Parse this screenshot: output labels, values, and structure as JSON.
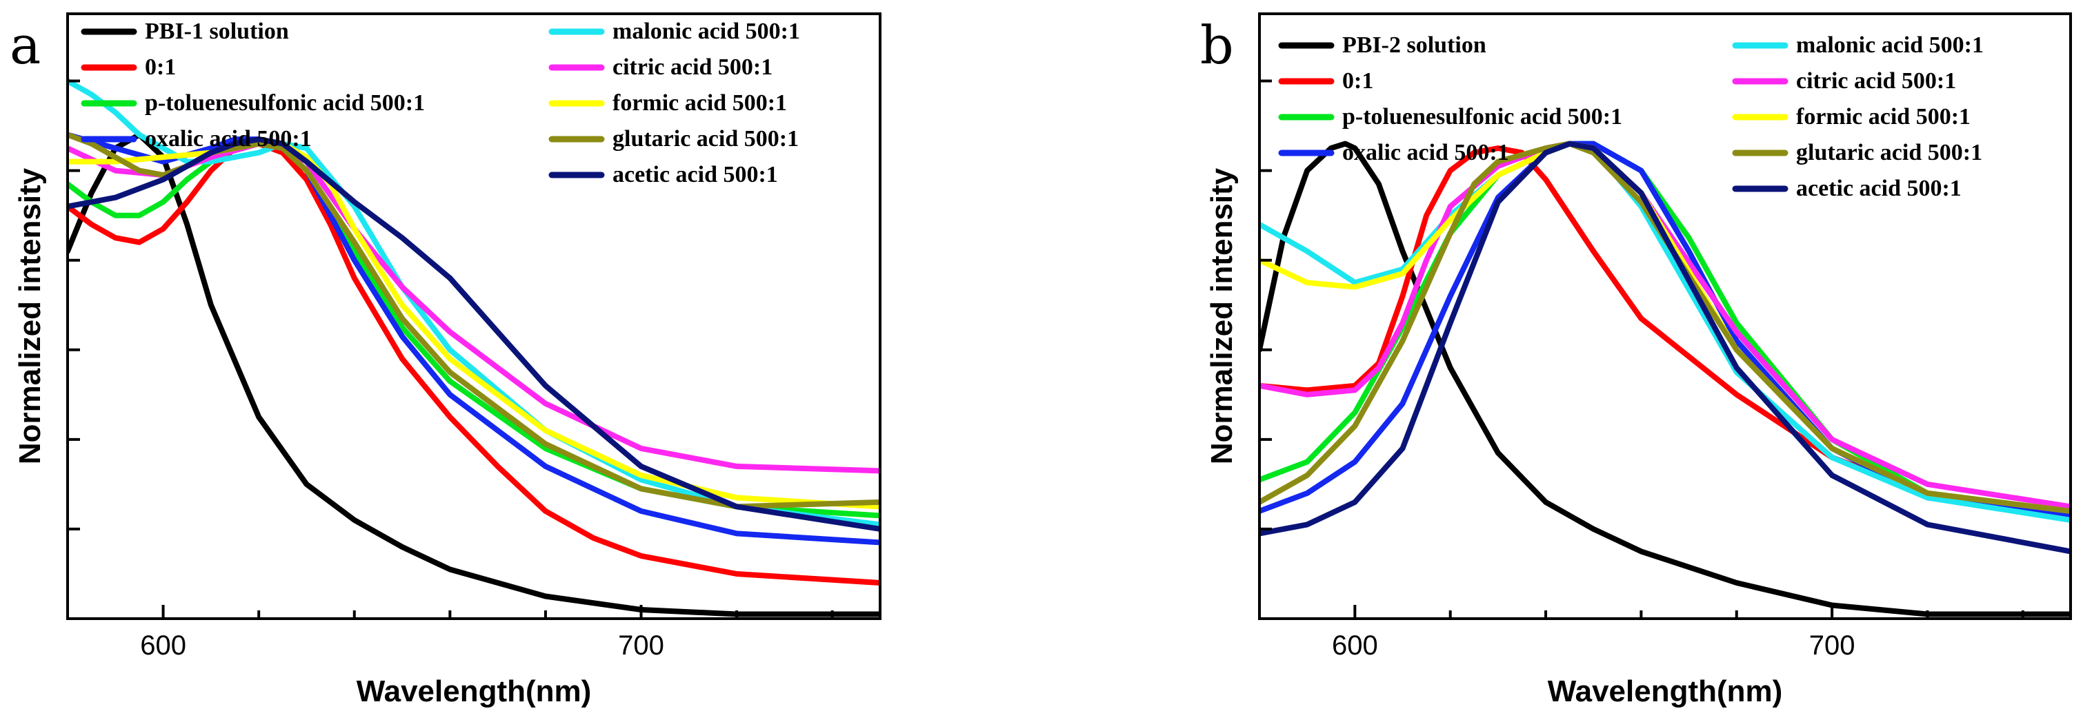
{
  "chart_data": [
    {
      "type": "line",
      "panel_label": "a",
      "xlabel": "Wavelength(nm)",
      "ylabel": "Normalized intensity",
      "xlim": [
        580,
        750
      ],
      "ylim": [
        0,
        1.35
      ],
      "x_ticks": [
        600,
        700
      ],
      "x_tick_labels": [
        "600",
        "700"
      ],
      "legend_position": "top",
      "series": [
        {
          "name": "PBI-1 solution",
          "color": "#000000",
          "x": [
            580,
            585,
            590,
            595,
            600,
            605,
            610,
            620,
            630,
            640,
            650,
            660,
            680,
            700,
            720,
            750
          ],
          "values": [
            0.82,
            0.95,
            1.05,
            1.08,
            1.03,
            0.88,
            0.7,
            0.45,
            0.3,
            0.22,
            0.16,
            0.11,
            0.05,
            0.02,
            0.01,
            0.01
          ]
        },
        {
          "name": "0:1",
          "color": "#ff0000",
          "x": [
            580,
            585,
            590,
            595,
            600,
            605,
            610,
            615,
            620,
            625,
            630,
            635,
            640,
            650,
            660,
            670,
            680,
            690,
            700,
            720,
            750
          ],
          "values": [
            0.92,
            0.88,
            0.85,
            0.84,
            0.87,
            0.93,
            1.0,
            1.05,
            1.06,
            1.04,
            0.98,
            0.88,
            0.76,
            0.58,
            0.45,
            0.34,
            0.24,
            0.18,
            0.14,
            0.1,
            0.08
          ]
        },
        {
          "name": "p-toluenesulfonic acid 500:1",
          "color": "#00e61e",
          "x": [
            580,
            585,
            590,
            595,
            600,
            605,
            610,
            615,
            620,
            625,
            630,
            640,
            650,
            660,
            680,
            700,
            720,
            750
          ],
          "values": [
            0.97,
            0.93,
            0.9,
            0.9,
            0.93,
            0.98,
            1.02,
            1.05,
            1.06,
            1.05,
            1.0,
            0.82,
            0.65,
            0.53,
            0.38,
            0.29,
            0.25,
            0.23
          ]
        },
        {
          "name": "oxalic acid 500:1",
          "color": "#1428f0",
          "x": [
            580,
            590,
            600,
            610,
            615,
            620,
            625,
            630,
            640,
            650,
            660,
            680,
            700,
            720,
            750
          ],
          "values": [
            1.08,
            1.05,
            1.02,
            1.05,
            1.07,
            1.07,
            1.05,
            1.0,
            0.8,
            0.63,
            0.5,
            0.34,
            0.24,
            0.19,
            0.17
          ]
        },
        {
          "name": "malonic acid 500:1",
          "color": "#1ee6f0",
          "x": [
            580,
            585,
            590,
            595,
            600,
            605,
            610,
            620,
            625,
            630,
            640,
            650,
            660,
            680,
            700,
            720,
            750
          ],
          "values": [
            1.2,
            1.17,
            1.13,
            1.08,
            1.05,
            1.02,
            1.02,
            1.04,
            1.06,
            1.05,
            0.92,
            0.74,
            0.6,
            0.42,
            0.31,
            0.25,
            0.21
          ]
        },
        {
          "name": "citric acid 500:1",
          "color": "#ff28f0",
          "x": [
            580,
            590,
            600,
            610,
            620,
            625,
            630,
            640,
            650,
            660,
            680,
            700,
            720,
            750
          ],
          "values": [
            1.05,
            1.0,
            0.99,
            1.03,
            1.06,
            1.05,
            1.02,
            0.87,
            0.74,
            0.64,
            0.48,
            0.38,
            0.34,
            0.33
          ]
        },
        {
          "name": "formic acid 500:1",
          "color": "#ffff00",
          "x": [
            580,
            590,
            600,
            610,
            620,
            625,
            630,
            635,
            640,
            650,
            660,
            680,
            700,
            720,
            750
          ],
          "values": [
            1.02,
            1.02,
            1.03,
            1.04,
            1.06,
            1.06,
            1.03,
            0.97,
            0.87,
            0.7,
            0.58,
            0.42,
            0.32,
            0.27,
            0.25
          ]
        },
        {
          "name": "glutaric acid 500:1",
          "color": "#8c8c14",
          "x": [
            580,
            585,
            590,
            595,
            600,
            605,
            610,
            620,
            625,
            630,
            640,
            650,
            660,
            680,
            700,
            720,
            750
          ],
          "values": [
            1.08,
            1.06,
            1.03,
            1.0,
            0.99,
            1.01,
            1.04,
            1.06,
            1.05,
            1.0,
            0.84,
            0.67,
            0.55,
            0.39,
            0.29,
            0.25,
            0.26
          ]
        },
        {
          "name": "acetic acid 500:1",
          "color": "#0a1478",
          "x": [
            580,
            590,
            600,
            610,
            615,
            620,
            625,
            630,
            640,
            650,
            660,
            670,
            680,
            700,
            720,
            750
          ],
          "values": [
            0.92,
            0.94,
            0.98,
            1.04,
            1.06,
            1.07,
            1.06,
            1.02,
            0.93,
            0.85,
            0.76,
            0.64,
            0.52,
            0.34,
            0.25,
            0.2
          ]
        }
      ]
    },
    {
      "type": "line",
      "panel_label": "b",
      "xlabel": "Wavelength(nm)",
      "ylabel": "Normalized intensity",
      "xlim": [
        580,
        750
      ],
      "ylim": [
        0,
        1.35
      ],
      "x_ticks": [
        600,
        700
      ],
      "x_tick_labels": [
        "600",
        "700"
      ],
      "legend_position": "top",
      "series": [
        {
          "name": "PBI-2 solution",
          "color": "#000000",
          "x": [
            580,
            585,
            590,
            595,
            598,
            600,
            605,
            610,
            620,
            630,
            640,
            650,
            660,
            680,
            700,
            720,
            750
          ],
          "values": [
            0.6,
            0.85,
            1.0,
            1.05,
            1.06,
            1.05,
            0.97,
            0.82,
            0.56,
            0.37,
            0.26,
            0.2,
            0.15,
            0.08,
            0.03,
            0.01,
            0.01
          ]
        },
        {
          "name": "0:1",
          "color": "#ff0000",
          "x": [
            580,
            590,
            600,
            605,
            610,
            615,
            620,
            625,
            630,
            635,
            640,
            650,
            660,
            680,
            700,
            720,
            750
          ],
          "values": [
            0.52,
            0.51,
            0.52,
            0.57,
            0.72,
            0.9,
            1.0,
            1.04,
            1.05,
            1.04,
            0.98,
            0.82,
            0.67,
            0.5,
            0.36,
            0.28,
            0.23
          ]
        },
        {
          "name": "p-toluenesulfonic acid 500:1",
          "color": "#00e61e",
          "x": [
            580,
            590,
            600,
            610,
            620,
            630,
            640,
            645,
            650,
            660,
            670,
            680,
            700,
            720,
            750
          ],
          "values": [
            0.31,
            0.35,
            0.46,
            0.65,
            0.86,
            0.99,
            1.04,
            1.06,
            1.06,
            1.0,
            0.85,
            0.66,
            0.4,
            0.28,
            0.24
          ]
        },
        {
          "name": "oxalic acid 500:1",
          "color": "#1428f0",
          "x": [
            580,
            590,
            600,
            610,
            620,
            630,
            640,
            645,
            650,
            660,
            670,
            680,
            700,
            720,
            750
          ],
          "values": [
            0.24,
            0.28,
            0.35,
            0.48,
            0.72,
            0.94,
            1.04,
            1.06,
            1.06,
            1.0,
            0.82,
            0.62,
            0.38,
            0.27,
            0.23
          ]
        },
        {
          "name": "malonic acid 500:1",
          "color": "#1ee6f0",
          "x": [
            580,
            590,
            600,
            610,
            620,
            630,
            640,
            645,
            650,
            660,
            680,
            700,
            720,
            750
          ],
          "values": [
            0.88,
            0.82,
            0.75,
            0.78,
            0.9,
            0.99,
            1.04,
            1.06,
            1.05,
            0.92,
            0.55,
            0.36,
            0.27,
            0.22
          ]
        },
        {
          "name": "citric acid 500:1",
          "color": "#ff28f0",
          "x": [
            580,
            590,
            600,
            605,
            610,
            615,
            620,
            630,
            640,
            645,
            650,
            660,
            680,
            700,
            720,
            750
          ],
          "values": [
            0.52,
            0.5,
            0.51,
            0.56,
            0.66,
            0.8,
            0.92,
            1.01,
            1.05,
            1.06,
            1.05,
            0.95,
            0.64,
            0.4,
            0.3,
            0.25
          ]
        },
        {
          "name": "formic acid 500:1",
          "color": "#ffff00",
          "x": [
            580,
            590,
            600,
            610,
            620,
            630,
            640,
            645,
            650,
            660,
            680,
            700,
            720,
            750
          ],
          "values": [
            0.8,
            0.75,
            0.74,
            0.77,
            0.89,
            0.99,
            1.04,
            1.06,
            1.05,
            0.95,
            0.6,
            0.38,
            0.28,
            0.24
          ]
        },
        {
          "name": "glutaric acid 500:1",
          "color": "#8c8c14",
          "x": [
            580,
            590,
            600,
            610,
            620,
            625,
            630,
            640,
            645,
            650,
            660,
            680,
            700,
            720,
            750
          ],
          "values": [
            0.26,
            0.32,
            0.43,
            0.62,
            0.86,
            0.97,
            1.02,
            1.05,
            1.06,
            1.04,
            0.93,
            0.6,
            0.38,
            0.28,
            0.24
          ]
        },
        {
          "name": "acetic acid 500:1",
          "color": "#0a1478",
          "x": [
            580,
            590,
            600,
            610,
            620,
            630,
            640,
            645,
            650,
            660,
            680,
            700,
            720,
            750
          ],
          "values": [
            0.19,
            0.21,
            0.26,
            0.38,
            0.66,
            0.93,
            1.04,
            1.06,
            1.05,
            0.95,
            0.56,
            0.32,
            0.21,
            0.15
          ]
        }
      ]
    }
  ]
}
